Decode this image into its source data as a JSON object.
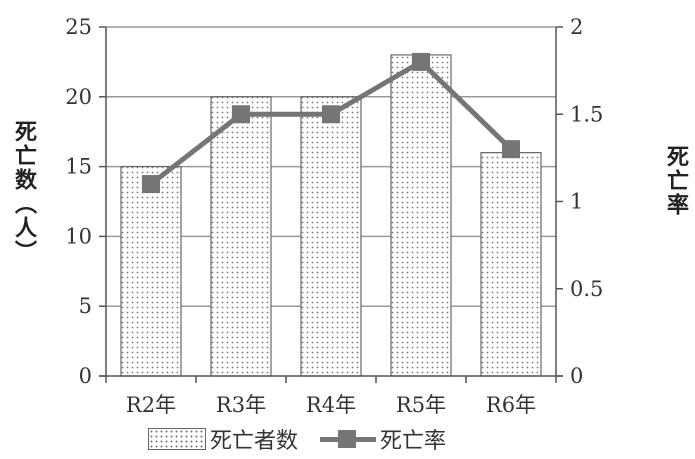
{
  "chart_data": {
    "type": "bar+line",
    "categories": [
      "R2年",
      "R3年",
      "R4年",
      "R5年",
      "R6年"
    ],
    "series": [
      {
        "name": "死亡者数",
        "type": "bar",
        "axis": "left",
        "values": [
          15,
          20,
          20,
          23,
          16
        ],
        "pattern": "dotted"
      },
      {
        "name": "死亡率",
        "type": "line",
        "axis": "right",
        "values": [
          1.1,
          1.5,
          1.5,
          1.8,
          1.3
        ],
        "marker": "square"
      }
    ],
    "y_left": {
      "label": "死亡数（人）",
      "ylim": [
        0,
        25
      ],
      "ticks": [
        "0",
        "5",
        "10",
        "15",
        "20",
        "25"
      ]
    },
    "y_right": {
      "label": "死亡率",
      "ylim": [
        0,
        2
      ],
      "ticks": [
        "0",
        "0.5",
        "1",
        "1.5",
        "2"
      ]
    },
    "grid": "horizontal",
    "legend_position": "bottom",
    "colors": {
      "line": "#757575",
      "grid": "#999999",
      "bar_border": "#666666",
      "dots": "#777777"
    }
  }
}
